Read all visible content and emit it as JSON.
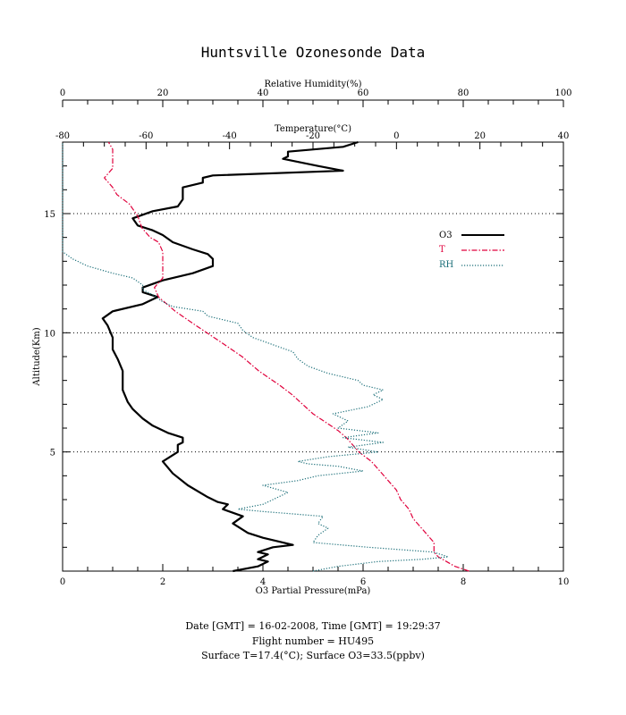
{
  "chart_data": {
    "type": "line",
    "title": "Huntsville Ozonesonde Data",
    "axes": {
      "o3": {
        "label": "O3 Partial Pressure(mPa)",
        "range": [
          0,
          10
        ],
        "ticks": [
          "0",
          "2",
          "4",
          "6",
          "8",
          "10"
        ],
        "tick_values": [
          0,
          2,
          4,
          6,
          8,
          10
        ]
      },
      "rh": {
        "label": "Relative Humidity(%)",
        "range": [
          0,
          100
        ],
        "ticks": [
          "0",
          "20",
          "40",
          "60",
          "80",
          "100"
        ],
        "tick_values": [
          0,
          20,
          40,
          60,
          80,
          100
        ]
      },
      "temp": {
        "label": "Temperature(°C)",
        "range": [
          -80,
          40
        ],
        "ticks": [
          "-80",
          "-60",
          "-40",
          "-20",
          "0",
          "20",
          "40"
        ],
        "tick_values": [
          -80,
          -60,
          -40,
          -20,
          0,
          20,
          40
        ]
      },
      "alt": {
        "label": "Altitude(Km)",
        "range": [
          0,
          18
        ],
        "ticks": [
          "5",
          "10",
          "15"
        ],
        "tick_values": [
          5,
          10,
          15
        ]
      }
    },
    "grid": "dotted horizontal at 5, 10, 15 km",
    "legend_position": "right",
    "legend": [
      {
        "label": "O3",
        "color": "#000000",
        "style": "solid"
      },
      {
        "label": "T",
        "color": "#e0003c",
        "style": "dashdot"
      },
      {
        "label": "RH",
        "color": "#1a6e78",
        "style": "dotted"
      }
    ],
    "series": [
      {
        "name": "O3",
        "axis": "o3",
        "color": "#000000",
        "points": [
          [
            3.4,
            0
          ],
          [
            3.9,
            0.2
          ],
          [
            4.1,
            0.4
          ],
          [
            3.9,
            0.5
          ],
          [
            4.1,
            0.7
          ],
          [
            3.9,
            0.8
          ],
          [
            4.2,
            1.0
          ],
          [
            4.6,
            1.1
          ],
          [
            4.0,
            1.4
          ],
          [
            3.7,
            1.6
          ],
          [
            3.4,
            2.0
          ],
          [
            3.6,
            2.3
          ],
          [
            3.2,
            2.6
          ],
          [
            3.3,
            2.8
          ],
          [
            3.1,
            2.9
          ],
          [
            2.9,
            3.1
          ],
          [
            2.5,
            3.6
          ],
          [
            2.2,
            4.1
          ],
          [
            2.0,
            4.6
          ],
          [
            2.3,
            5.0
          ],
          [
            2.3,
            5.3
          ],
          [
            2.4,
            5.4
          ],
          [
            2.4,
            5.6
          ],
          [
            2.1,
            5.8
          ],
          [
            1.8,
            6.1
          ],
          [
            1.6,
            6.4
          ],
          [
            1.4,
            6.8
          ],
          [
            1.3,
            7.1
          ],
          [
            1.2,
            7.6
          ],
          [
            1.2,
            8.0
          ],
          [
            1.2,
            8.4
          ],
          [
            1.1,
            8.9
          ],
          [
            1.0,
            9.3
          ],
          [
            1.0,
            9.8
          ],
          [
            0.9,
            10.3
          ],
          [
            0.8,
            10.6
          ],
          [
            1.0,
            10.9
          ],
          [
            1.6,
            11.2
          ],
          [
            1.9,
            11.5
          ],
          [
            1.6,
            11.7
          ],
          [
            1.6,
            11.9
          ],
          [
            2.0,
            12.2
          ],
          [
            2.6,
            12.5
          ],
          [
            3.0,
            12.8
          ],
          [
            3.0,
            13.1
          ],
          [
            2.9,
            13.3
          ],
          [
            2.6,
            13.5
          ],
          [
            2.2,
            13.8
          ],
          [
            2.0,
            14.1
          ],
          [
            1.8,
            14.3
          ],
          [
            1.5,
            14.5
          ],
          [
            1.4,
            14.8
          ],
          [
            1.8,
            15.1
          ],
          [
            2.3,
            15.3
          ],
          [
            2.4,
            15.6
          ],
          [
            2.4,
            16.1
          ],
          [
            2.8,
            16.3
          ],
          [
            2.8,
            16.5
          ],
          [
            3.0,
            16.6
          ],
          [
            5.6,
            16.8
          ],
          [
            5.1,
            17.0
          ],
          [
            4.4,
            17.3
          ],
          [
            4.5,
            17.4
          ],
          [
            4.5,
            17.6
          ],
          [
            5.6,
            17.8
          ],
          [
            5.9,
            18.0
          ]
        ]
      },
      {
        "name": "T",
        "axis": "temp",
        "color": "#e0003c",
        "points": [
          [
            17.4,
            0
          ],
          [
            14,
            0.2
          ],
          [
            10,
            0.6
          ],
          [
            9,
            0.8
          ],
          [
            9,
            1.2
          ],
          [
            7,
            1.6
          ],
          [
            4,
            2.2
          ],
          [
            3,
            2.6
          ],
          [
            1,
            3.0
          ],
          [
            0,
            3.4
          ],
          [
            -2,
            3.8
          ],
          [
            -4,
            4.2
          ],
          [
            -6,
            4.6
          ],
          [
            -9,
            5.0
          ],
          [
            -12,
            5.6
          ],
          [
            -14,
            5.9
          ],
          [
            -20,
            6.6
          ],
          [
            -25,
            7.4
          ],
          [
            -28,
            7.8
          ],
          [
            -33,
            8.4
          ],
          [
            -37,
            9.0
          ],
          [
            -42,
            9.6
          ],
          [
            -48,
            10.3
          ],
          [
            -53,
            10.9
          ],
          [
            -55,
            11.2
          ],
          [
            -57,
            11.5
          ],
          [
            -58,
            11.9
          ],
          [
            -56,
            12.3
          ],
          [
            -56,
            12.9
          ],
          [
            -56,
            13.4
          ],
          [
            -57,
            13.8
          ],
          [
            -59,
            14.0
          ],
          [
            -61,
            14.4
          ],
          [
            -62,
            14.9
          ],
          [
            -64,
            15.4
          ],
          [
            -67,
            15.8
          ],
          [
            -68,
            16.1
          ],
          [
            -70,
            16.5
          ],
          [
            -68,
            16.9
          ],
          [
            -68,
            17.3
          ],
          [
            -68,
            17.7
          ],
          [
            -69,
            18.0
          ]
        ]
      },
      {
        "name": "RH",
        "axis": "rh",
        "color": "#1a6e78",
        "points": [
          [
            50,
            0
          ],
          [
            55,
            0.2
          ],
          [
            63,
            0.4
          ],
          [
            72,
            0.5
          ],
          [
            77,
            0.6
          ],
          [
            74,
            0.8
          ],
          [
            61,
            1.0
          ],
          [
            50,
            1.2
          ],
          [
            51,
            1.5
          ],
          [
            53,
            1.8
          ],
          [
            51,
            2.0
          ],
          [
            52,
            2.3
          ],
          [
            46,
            2.4
          ],
          [
            40,
            2.5
          ],
          [
            35,
            2.6
          ],
          [
            40,
            2.8
          ],
          [
            42,
            3.0
          ],
          [
            45,
            3.3
          ],
          [
            40,
            3.6
          ],
          [
            47,
            3.8
          ],
          [
            51,
            4.0
          ],
          [
            60,
            4.2
          ],
          [
            55,
            4.4
          ],
          [
            49,
            4.5
          ],
          [
            47,
            4.6
          ],
          [
            53,
            4.8
          ],
          [
            63,
            5.0
          ],
          [
            57,
            5.2
          ],
          [
            64,
            5.4
          ],
          [
            56,
            5.6
          ],
          [
            63,
            5.8
          ],
          [
            55,
            6.0
          ],
          [
            57,
            6.3
          ],
          [
            54,
            6.6
          ],
          [
            61,
            6.9
          ],
          [
            64,
            7.2
          ],
          [
            62,
            7.4
          ],
          [
            64,
            7.6
          ],
          [
            60,
            7.8
          ],
          [
            59,
            8.0
          ],
          [
            53,
            8.3
          ],
          [
            49,
            8.6
          ],
          [
            47,
            8.9
          ],
          [
            46,
            9.2
          ],
          [
            42,
            9.5
          ],
          [
            38,
            9.8
          ],
          [
            36,
            10.1
          ],
          [
            35,
            10.4
          ],
          [
            29,
            10.7
          ],
          [
            28,
            10.9
          ],
          [
            22,
            11.1
          ],
          [
            20,
            11.3
          ],
          [
            18,
            11.6
          ],
          [
            16,
            11.8
          ],
          [
            16,
            12.0
          ],
          [
            14,
            12.3
          ],
          [
            10,
            12.5
          ],
          [
            5,
            12.8
          ],
          [
            2,
            13.1
          ],
          [
            0,
            13.4
          ],
          [
            0,
            18.0
          ]
        ]
      }
    ]
  },
  "footer": {
    "line1": "Date [GMT] = 16-02-2008,  Time [GMT] = 19:29:37",
    "line2": "Flight number = HU495",
    "line3": "Surface T=17.4(°C); Surface O3=33.5(ppbv)"
  }
}
